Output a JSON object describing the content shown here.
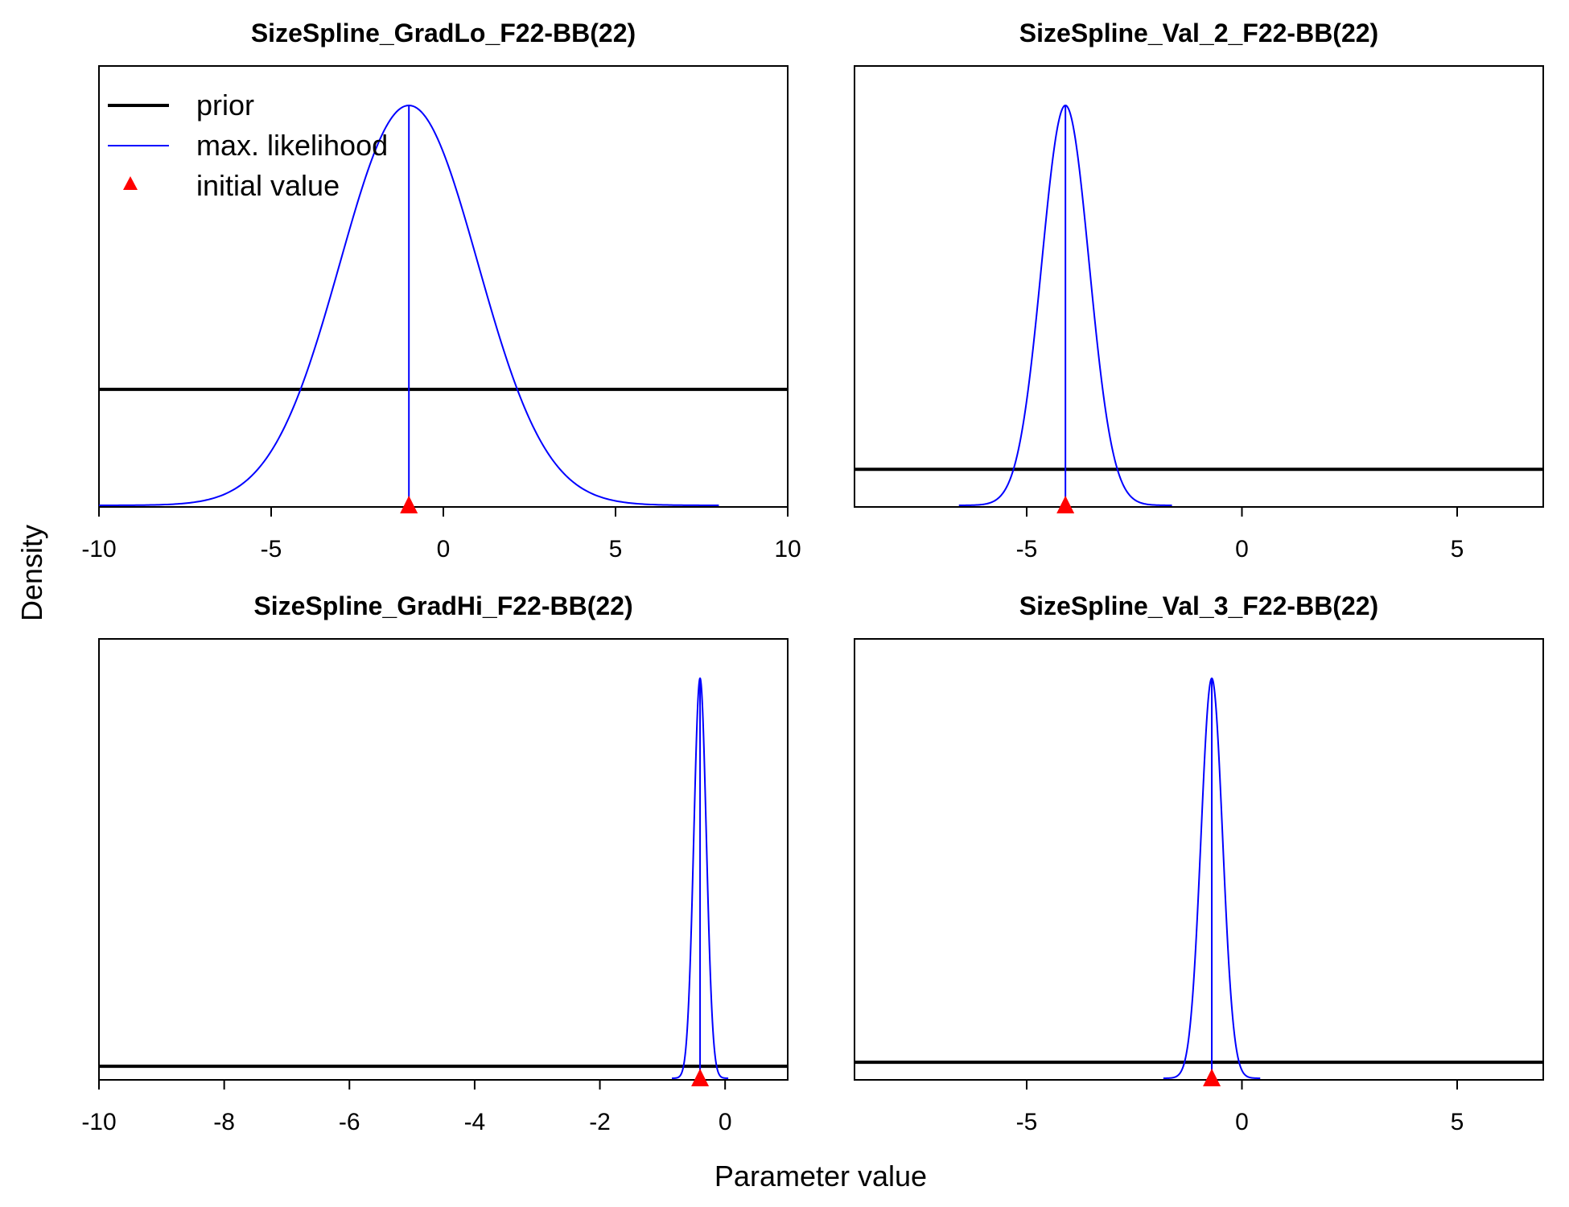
{
  "figure": {
    "xlabel": "Parameter value",
    "ylabel": "Density",
    "legend": {
      "position": "top-left",
      "panel": 0,
      "entries": [
        {
          "label": "prior",
          "symbol": "line",
          "color": "#000000"
        },
        {
          "label": "max. likelihood",
          "symbol": "line",
          "color": "#0000ff"
        },
        {
          "label": "initial value",
          "symbol": "triangle",
          "color": "#ff0000"
        }
      ]
    },
    "colors": {
      "prior": "#000000",
      "likelihood": "#0000ff",
      "initial": "#ff0000"
    }
  },
  "chart_data": [
    {
      "type": "line",
      "title": "SizeSpline_GradLo_F22-BB(22)",
      "xlim": [
        -10,
        10
      ],
      "xticks": [
        -10,
        -5,
        0,
        5,
        10
      ],
      "xtick_labels": [
        "-10",
        "-5",
        "0",
        "5",
        "10"
      ],
      "prior_level": 0.29,
      "mle_mean": -1.0,
      "mle_sd": 2.0,
      "initial_value": -1.0,
      "series": [
        {
          "name": "prior",
          "kind": "flat",
          "relative_density": 0.29
        },
        {
          "name": "max. likelihood",
          "kind": "normal",
          "mean": -1.0,
          "sd": 2.0
        }
      ]
    },
    {
      "type": "line",
      "title": "SizeSpline_Val_2_F22-BB(22)",
      "xlim": [
        -9,
        7
      ],
      "xticks": [
        -5,
        0,
        5
      ],
      "xtick_labels": [
        "-5",
        "0",
        "5"
      ],
      "prior_level": 0.09,
      "mle_mean": -4.1,
      "mle_sd": 0.55,
      "initial_value": -4.1,
      "series": [
        {
          "name": "prior",
          "kind": "flat",
          "relative_density": 0.09
        },
        {
          "name": "max. likelihood",
          "kind": "normal",
          "mean": -4.1,
          "sd": 0.55
        }
      ]
    },
    {
      "type": "line",
      "title": "SizeSpline_GradHi_F22-BB(22)",
      "xlim": [
        -10,
        1
      ],
      "xticks": [
        -10,
        -8,
        -6,
        -4,
        -2,
        0
      ],
      "xtick_labels": [
        "-10",
        "-8",
        "-6",
        "-4",
        "-2",
        "0"
      ],
      "prior_level": 0.03,
      "mle_mean": -0.4,
      "mle_sd": 0.1,
      "initial_value": -0.4,
      "series": [
        {
          "name": "prior",
          "kind": "flat",
          "relative_density": 0.03
        },
        {
          "name": "max. likelihood",
          "kind": "normal",
          "mean": -0.4,
          "sd": 0.1
        }
      ]
    },
    {
      "type": "line",
      "title": "SizeSpline_Val_3_F22-BB(22)",
      "xlim": [
        -9,
        7
      ],
      "xticks": [
        -5,
        0,
        5
      ],
      "xtick_labels": [
        "-5",
        "0",
        "5"
      ],
      "prior_level": 0.04,
      "mle_mean": -0.7,
      "mle_sd": 0.25,
      "initial_value": -0.7,
      "series": [
        {
          "name": "prior",
          "kind": "flat",
          "relative_density": 0.04
        },
        {
          "name": "max. likelihood",
          "kind": "normal",
          "mean": -0.7,
          "sd": 0.25
        }
      ]
    }
  ]
}
